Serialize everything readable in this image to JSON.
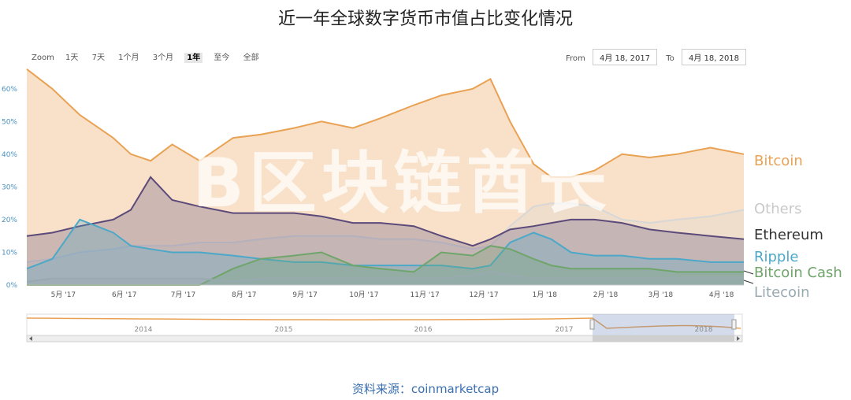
{
  "title": "近一年全球数字货币市值占比变化情况",
  "zoom": {
    "label": "Zoom",
    "buttons": [
      "1天",
      "7天",
      "1个月",
      "3个月",
      "1年",
      "至今",
      "全部"
    ],
    "active_index": 4
  },
  "range": {
    "from_label": "From",
    "from": "4月 18, 2017",
    "to_label": "To",
    "to": "4月 18, 2018"
  },
  "watermark": "B区块链酋长",
  "source": "资料来源：coinmarketcap",
  "navigator": {
    "year_labels": [
      "2014",
      "2015",
      "2016",
      "2017",
      "2018"
    ]
  },
  "chart_data": {
    "type": "area",
    "title": "近一年全球数字货币市值占比变化情况",
    "x": [
      "2017-04-18",
      "2017-05-01",
      "2017-05-15",
      "2017-06-01",
      "2017-06-10",
      "2017-06-20",
      "2017-07-01",
      "2017-07-15",
      "2017-08-01",
      "2017-08-15",
      "2017-09-01",
      "2017-09-15",
      "2017-10-01",
      "2017-10-15",
      "2017-11-01",
      "2017-11-15",
      "2017-12-01",
      "2017-12-10",
      "2017-12-20",
      "2018-01-01",
      "2018-01-10",
      "2018-01-20",
      "2018-02-01",
      "2018-02-15",
      "2018-03-01",
      "2018-03-15",
      "2018-04-01",
      "2018-04-18"
    ],
    "x_tick_labels": [
      "5月 '17",
      "6月 '17",
      "7月 '17",
      "8月 '17",
      "9月 '17",
      "10月 '17",
      "11月 '17",
      "12月 '17",
      "1月 '18",
      "2月 '18",
      "3月 '18",
      "4月 '18"
    ],
    "x_ticks": [
      "2017-05-01",
      "2017-06-01",
      "2017-07-01",
      "2017-08-01",
      "2017-09-01",
      "2017-10-01",
      "2017-11-01",
      "2017-12-01",
      "2018-01-01",
      "2018-02-01",
      "2018-03-01",
      "2018-04-01"
    ],
    "y_tick_labels": [
      "0%",
      "10%",
      "20%",
      "30%",
      "40%",
      "50%",
      "60%"
    ],
    "ylim": [
      0,
      65
    ],
    "series": [
      {
        "name": "Bitcoin",
        "color": "#e9a254",
        "values": [
          66,
          60,
          52,
          45,
          40,
          38,
          43,
          38,
          45,
          46,
          48,
          50,
          48,
          51,
          55,
          58,
          60,
          63,
          50,
          37,
          33,
          33,
          35,
          40,
          39,
          40,
          42,
          40
        ]
      },
      {
        "name": "Others",
        "color": "#d7d7d7",
        "values": [
          7,
          8,
          10,
          11,
          12,
          12,
          12,
          13,
          13,
          14,
          15,
          15,
          15,
          14,
          14,
          13,
          11,
          12,
          18,
          24,
          25,
          25,
          24,
          20,
          19,
          20,
          21,
          23
        ]
      },
      {
        "name": "Ethereum",
        "color": "#5b4a7a",
        "values": [
          15,
          16,
          18,
          20,
          23,
          33,
          26,
          24,
          22,
          22,
          22,
          21,
          19,
          19,
          18,
          15,
          12,
          14,
          17,
          18,
          19,
          20,
          20,
          19,
          17,
          16,
          15,
          14
        ]
      },
      {
        "name": "Ripple",
        "color": "#4ca8c8",
        "values": [
          5,
          8,
          20,
          16,
          12,
          11,
          10,
          10,
          9,
          8,
          7,
          7,
          6,
          6,
          6,
          6,
          5,
          6,
          13,
          16,
          14,
          10,
          9,
          9,
          8,
          8,
          7,
          7
        ]
      },
      {
        "name": "Bitcoin Cash",
        "color": "#6fa56a",
        "values": [
          0,
          0,
          0,
          0,
          0,
          0,
          0,
          0,
          5,
          8,
          9,
          10,
          6,
          5,
          4,
          10,
          9,
          12,
          11,
          8,
          6,
          5,
          5,
          5,
          5,
          4,
          4,
          4
        ]
      },
      {
        "name": "Litecoin",
        "color": "#98aab0",
        "values": [
          1,
          2,
          2,
          2,
          2,
          2,
          2,
          2,
          1,
          2,
          2,
          2,
          2,
          2,
          2,
          2,
          3,
          4,
          3,
          2,
          2,
          2,
          2,
          2,
          2,
          2,
          2,
          2
        ]
      }
    ],
    "grid": false,
    "legend": "right"
  }
}
